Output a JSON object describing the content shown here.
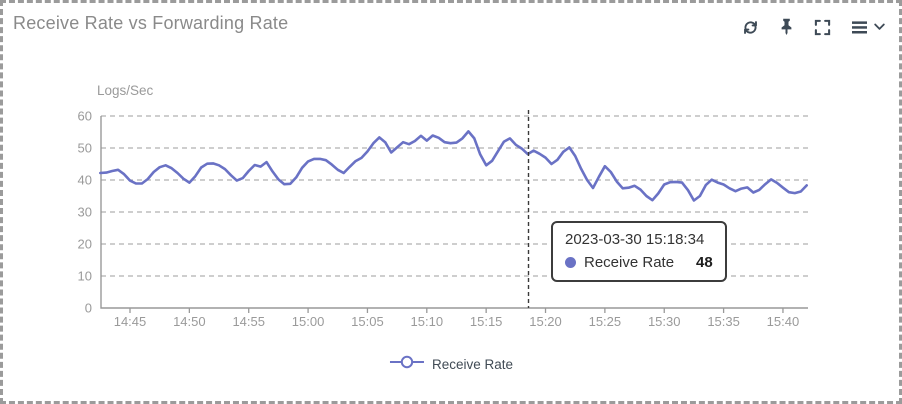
{
  "widget": {
    "title": "Receive Rate vs Forwarding Rate"
  },
  "toolbar": {
    "icons": [
      "refresh",
      "pin",
      "fullscreen",
      "menu",
      "chevron-down"
    ]
  },
  "tooltip": {
    "timestamp": "2023-03-30 15:18:34",
    "series_name": "Receive Rate",
    "value": "48",
    "dot_color": "#6a72c5"
  },
  "legend": {
    "label": "Receive Rate"
  },
  "colors": {
    "line": "#6a72c5",
    "grid": "#b0b0b0",
    "axis": "#999999",
    "axis_text": "#9a9a9a",
    "cursor": "#3a3a3a",
    "icon": "#3e4a56",
    "title_text": "#8a8a8a"
  },
  "chart_data": {
    "type": "line",
    "title": "Receive Rate vs Forwarding Rate",
    "xlabel": "",
    "ylabel": "Logs/Sec",
    "ylim": [
      0,
      60
    ],
    "yticks": [
      0,
      10,
      20,
      30,
      40,
      50,
      60
    ],
    "xticks": [
      "14:45",
      "14:50",
      "14:55",
      "15:00",
      "15:05",
      "15:10",
      "15:15",
      "15:20",
      "15:25",
      "15:30",
      "15:35",
      "15:40"
    ],
    "grid": "horizontal-dashed",
    "legend_position": "bottom-center",
    "cursor": {
      "time": "15:18:34",
      "style": "vertical-dashed"
    },
    "series": [
      {
        "name": "Receive Rate",
        "color": "#6a72c5",
        "marker": "open-circle",
        "start_time": "14:42:30",
        "step_seconds": 30,
        "values": [
          42.2,
          42.3,
          42.8,
          43.2,
          41.8,
          39.8,
          38.9,
          38.9,
          40.3,
          42.5,
          44.0,
          44.6,
          43.7,
          42.2,
          40.4,
          39.2,
          41.2,
          43.9,
          45.1,
          45.2,
          44.6,
          43.4,
          41.5,
          39.8,
          40.6,
          42.8,
          44.7,
          44.2,
          45.6,
          42.7,
          40.2,
          38.7,
          38.8,
          40.8,
          43.8,
          45.8,
          46.6,
          46.6,
          46.2,
          44.8,
          43.2,
          42.2,
          44.1,
          45.9,
          46.9,
          48.9,
          51.5,
          53.3,
          51.8,
          48.6,
          50.2,
          51.8,
          51.2,
          52.2,
          53.8,
          52.3,
          53.9,
          53.2,
          51.8,
          51.5,
          51.7,
          53.0,
          55.2,
          53.0,
          48.0,
          44.6,
          46.0,
          49.0,
          52.0,
          53.0,
          51.0,
          49.8,
          48.1,
          49.2,
          48.2,
          47.0,
          45.0,
          46.3,
          48.8,
          50.2,
          47.5,
          43.5,
          40.0,
          37.5,
          41.0,
          44.3,
          42.5,
          39.5,
          37.4,
          37.6,
          38.2,
          37.0,
          35.0,
          33.7,
          35.8,
          38.6,
          39.3,
          39.4,
          39.2,
          36.8,
          33.6,
          35.0,
          38.4,
          40.1,
          39.2,
          38.6,
          37.4,
          36.5,
          37.3,
          37.7,
          36.1,
          36.9,
          38.7,
          40.2,
          39.1,
          37.6,
          36.2,
          35.9,
          36.4,
          38.3
        ]
      }
    ]
  }
}
